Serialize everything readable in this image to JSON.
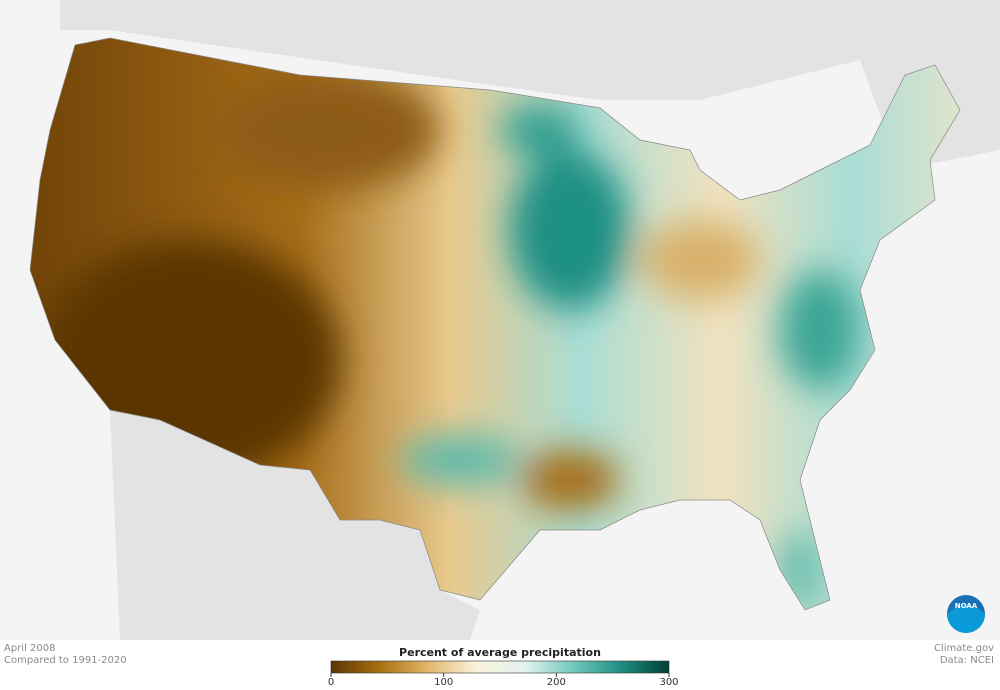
{
  "map": {
    "period": "April 2008",
    "baseline": "Compared to 1991-2020",
    "source": "Climate.gov",
    "data_source": "Data: NCEI",
    "logo": "NOAA",
    "legend": {
      "title": "Percent of average precipitation",
      "range": [
        0,
        300
      ],
      "ticks": [
        0,
        100,
        200,
        300
      ],
      "colors": [
        "#5a3504",
        "#a8700f",
        "#e0b76a",
        "#fbf1d9",
        "#e3f3f1",
        "#74c9bd",
        "#1f8f83",
        "#003f35"
      ]
    }
  }
}
